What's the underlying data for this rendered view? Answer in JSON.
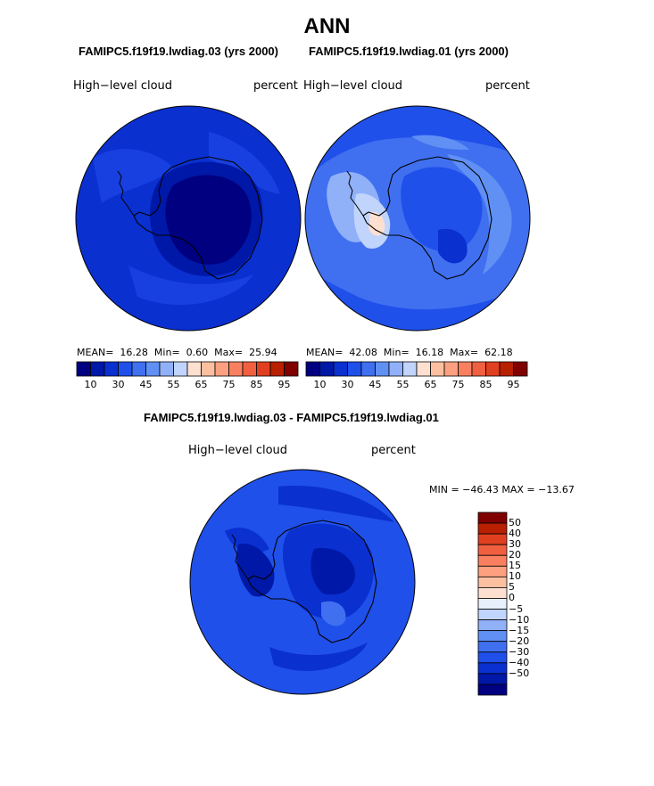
{
  "figure": {
    "title": "ANN",
    "diff_title": "FAMIPC5.f19f19.lwdiag.03 - FAMIPC5.f19f19.lwdiag.01"
  },
  "panels": [
    {
      "case": "FAMIPC5.f19f19.lwdiag.03 (yrs 2000)",
      "variable": "High−level cloud",
      "units": "percent",
      "stats": {
        "mean_label": "MEAN=",
        "mean": "16.28",
        "min_label": "Min=",
        "min": "0.60",
        "max_label": "Max=",
        "max": "25.94"
      }
    },
    {
      "case": "FAMIPC5.f19f19.lwdiag.01 (yrs 2000)",
      "variable": "High−level cloud",
      "units": "percent",
      "stats": {
        "mean_label": "MEAN=",
        "mean": "42.08",
        "min_label": "Min=",
        "min": "16.18",
        "max_label": "Max=",
        "max": "62.18"
      }
    },
    {
      "case": "",
      "variable": "High−level cloud",
      "units": "percent",
      "stats_text": "MIN = −46.43 MAX = −13.67"
    }
  ],
  "colorbar_abs": {
    "colors": [
      "#000080",
      "#0018a8",
      "#0a30d0",
      "#2050ea",
      "#4070f0",
      "#6090f4",
      "#90b0f8",
      "#c0d4fc",
      "#fde0d0",
      "#fcc0a0",
      "#fca080",
      "#f88060",
      "#f06040",
      "#e04020",
      "#b82000",
      "#800000"
    ],
    "tick_labels": [
      "10",
      "30",
      "45",
      "55",
      "65",
      "75",
      "85",
      "95"
    ]
  },
  "colorbar_diff": {
    "colors": [
      "#000080",
      "#0018a8",
      "#0a30d0",
      "#2050ea",
      "#4070f0",
      "#6090f4",
      "#90b0f8",
      "#c0d4fc",
      "#e8f0fc",
      "#fde0d0",
      "#fcc0a0",
      "#fca080",
      "#f88060",
      "#f06040",
      "#e04020",
      "#b82000",
      "#800000"
    ],
    "tick_labels": [
      "50",
      "40",
      "30",
      "20",
      "15",
      "10",
      "5",
      "0",
      "−5",
      "−10",
      "−15",
      "−20",
      "−30",
      "−40",
      "−50"
    ]
  },
  "chart_data": [
    {
      "type": "heatmap",
      "projection": "south-polar-stereographic",
      "title": "FAMIPC5.f19f19.lwdiag.03 (yrs 2000)",
      "variable": "High-level cloud",
      "units": "percent",
      "summary": {
        "mean": 16.28,
        "min": 0.6,
        "max": 25.94
      },
      "levels": [
        5,
        10,
        15,
        20,
        25,
        30,
        35,
        40,
        45,
        50,
        55,
        60,
        65,
        70,
        75,
        80,
        85,
        90,
        95
      ],
      "region_values": {
        "outer_ocean": 17,
        "southern_ocean": 20,
        "antarctic_interior": 5,
        "ross_sea": 8
      }
    },
    {
      "type": "heatmap",
      "projection": "south-polar-stereographic",
      "title": "FAMIPC5.f19f19.lwdiag.01 (yrs 2000)",
      "variable": "High-level cloud",
      "units": "percent",
      "summary": {
        "mean": 42.08,
        "min": 16.18,
        "max": 62.18
      },
      "levels": [
        5,
        10,
        15,
        20,
        25,
        30,
        35,
        40,
        45,
        50,
        55,
        60,
        65,
        70,
        75,
        80,
        85,
        90,
        95
      ],
      "region_values": {
        "outer_ocean": 40,
        "southern_ocean": 45,
        "antarctic_interior": 30,
        "antarctic_peninsula": 60
      }
    },
    {
      "type": "heatmap",
      "projection": "south-polar-stereographic",
      "title": "FAMIPC5.f19f19.lwdiag.03 - FAMIPC5.f19f19.lwdiag.01",
      "variable": "High-level cloud",
      "units": "percent",
      "summary": {
        "min": -46.43,
        "max": -13.67
      },
      "levels": [
        -50,
        -40,
        -30,
        -20,
        -15,
        -10,
        -5,
        0,
        5,
        10,
        15,
        20,
        30,
        40,
        50
      ],
      "region_values": {
        "outer_ocean": -22,
        "southern_ocean": -28,
        "antarctic_interior": -25,
        "antarctic_peninsula": -40
      }
    }
  ]
}
